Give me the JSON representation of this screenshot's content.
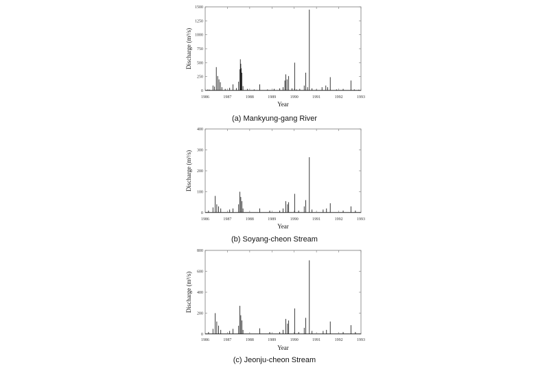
{
  "chart_data": [
    {
      "type": "line",
      "caption": "(a)  Mankyung-gang  River",
      "xlabel": "Year",
      "ylabel": "Discharge (m³/s)",
      "xlim": [
        1986,
        1993
      ],
      "ylim": [
        0,
        1500
      ],
      "xticks": [
        1986,
        1987,
        1988,
        1989,
        1990,
        1991,
        1992,
        1993
      ],
      "xtick_labels": [
        "1986",
        "1987",
        "1988",
        "1989",
        "1990",
        "1991",
        "1992",
        "1993"
      ],
      "yticks": [
        0,
        250,
        500,
        750,
        1000,
        1250,
        1500
      ],
      "ytick_labels": [
        "0",
        "250",
        "500",
        "750",
        "1000",
        "1250",
        "1500"
      ],
      "peaks": [
        [
          1986.12,
          20
        ],
        [
          1986.2,
          15
        ],
        [
          1986.35,
          90
        ],
        [
          1986.42,
          70
        ],
        [
          1986.5,
          420
        ],
        [
          1986.56,
          260
        ],
        [
          1986.62,
          200
        ],
        [
          1986.68,
          150
        ],
        [
          1986.75,
          60
        ],
        [
          1986.9,
          30
        ],
        [
          1987.1,
          50
        ],
        [
          1987.25,
          110
        ],
        [
          1987.4,
          45
        ],
        [
          1987.5,
          160
        ],
        [
          1987.56,
          380
        ],
        [
          1987.58,
          560
        ],
        [
          1987.6,
          480
        ],
        [
          1987.62,
          400
        ],
        [
          1987.65,
          320
        ],
        [
          1987.7,
          80
        ],
        [
          1987.9,
          30
        ],
        [
          1988.2,
          20
        ],
        [
          1988.45,
          110
        ],
        [
          1988.8,
          20
        ],
        [
          1989.1,
          30
        ],
        [
          1989.35,
          40
        ],
        [
          1989.5,
          60
        ],
        [
          1989.58,
          180
        ],
        [
          1989.62,
          290
        ],
        [
          1989.68,
          200
        ],
        [
          1989.75,
          260
        ],
        [
          1989.9,
          40
        ],
        [
          1990.02,
          500
        ],
        [
          1990.1,
          20
        ],
        [
          1990.25,
          30
        ],
        [
          1990.45,
          90
        ],
        [
          1990.52,
          320
        ],
        [
          1990.6,
          60
        ],
        [
          1990.68,
          1450
        ],
        [
          1990.8,
          40
        ],
        [
          1991.0,
          20
        ],
        [
          1991.25,
          60
        ],
        [
          1991.42,
          90
        ],
        [
          1991.5,
          60
        ],
        [
          1991.62,
          240
        ],
        [
          1991.9,
          20
        ],
        [
          1992.2,
          30
        ],
        [
          1992.55,
          180
        ],
        [
          1992.7,
          20
        ],
        [
          1992.9,
          15
        ]
      ]
    },
    {
      "type": "line",
      "caption": "(b)  Soyang-cheon  Stream",
      "xlabel": "Year",
      "ylabel": "Discharge (m³/s)",
      "xlim": [
        1986,
        1993
      ],
      "ylim": [
        0,
        400
      ],
      "xticks": [
        1986,
        1987,
        1988,
        1989,
        1990,
        1991,
        1992,
        1993
      ],
      "xtick_labels": [
        "1986",
        "1987",
        "1988",
        "1989",
        "1990",
        "1991",
        "1992",
        "1993"
      ],
      "yticks": [
        0,
        100,
        200,
        300,
        400
      ],
      "ytick_labels": [
        "0",
        "100",
        "200",
        "300",
        "400"
      ],
      "peaks": [
        [
          1986.15,
          10
        ],
        [
          1986.35,
          25
        ],
        [
          1986.45,
          80
        ],
        [
          1986.52,
          40
        ],
        [
          1986.6,
          30
        ],
        [
          1986.7,
          20
        ],
        [
          1987.1,
          15
        ],
        [
          1987.25,
          20
        ],
        [
          1987.5,
          40
        ],
        [
          1987.56,
          100
        ],
        [
          1987.6,
          75
        ],
        [
          1987.65,
          55
        ],
        [
          1987.7,
          20
        ],
        [
          1988.45,
          20
        ],
        [
          1988.9,
          10
        ],
        [
          1989.35,
          10
        ],
        [
          1989.5,
          20
        ],
        [
          1989.62,
          55
        ],
        [
          1989.7,
          40
        ],
        [
          1989.75,
          50
        ],
        [
          1990.02,
          90
        ],
        [
          1990.2,
          10
        ],
        [
          1990.45,
          30
        ],
        [
          1990.52,
          60
        ],
        [
          1990.68,
          265
        ],
        [
          1990.8,
          15
        ],
        [
          1991.3,
          15
        ],
        [
          1991.45,
          20
        ],
        [
          1991.62,
          45
        ],
        [
          1992.2,
          10
        ],
        [
          1992.55,
          30
        ],
        [
          1992.75,
          10
        ]
      ]
    },
    {
      "type": "line",
      "caption": "(c)  Jeonju-cheon  Stream",
      "xlabel": "Year",
      "ylabel": "Discharge (m³/s)",
      "xlim": [
        1986,
        1993
      ],
      "ylim": [
        0,
        800
      ],
      "xticks": [
        1986,
        1987,
        1988,
        1989,
        1990,
        1991,
        1992,
        1993
      ],
      "xtick_labels": [
        "1986",
        "1987",
        "1988",
        "1989",
        "1990",
        "1991",
        "1992",
        "1993"
      ],
      "yticks": [
        0,
        200,
        400,
        600,
        800
      ],
      "ytick_labels": [
        "0",
        "200",
        "400",
        "600",
        "800"
      ],
      "peaks": [
        [
          1986.15,
          20
        ],
        [
          1986.35,
          50
        ],
        [
          1986.45,
          200
        ],
        [
          1986.52,
          120
        ],
        [
          1986.6,
          80
        ],
        [
          1986.7,
          40
        ],
        [
          1987.1,
          30
        ],
        [
          1987.25,
          50
        ],
        [
          1987.5,
          80
        ],
        [
          1987.56,
          270
        ],
        [
          1987.6,
          180
        ],
        [
          1987.65,
          130
        ],
        [
          1987.7,
          40
        ],
        [
          1988.45,
          55
        ],
        [
          1988.9,
          20
        ],
        [
          1989.35,
          20
        ],
        [
          1989.5,
          40
        ],
        [
          1989.62,
          145
        ],
        [
          1989.7,
          100
        ],
        [
          1989.75,
          130
        ],
        [
          1990.02,
          245
        ],
        [
          1990.2,
          20
        ],
        [
          1990.45,
          60
        ],
        [
          1990.52,
          155
        ],
        [
          1990.68,
          705
        ],
        [
          1990.8,
          30
        ],
        [
          1991.3,
          30
        ],
        [
          1991.45,
          40
        ],
        [
          1991.62,
          120
        ],
        [
          1992.2,
          20
        ],
        [
          1992.55,
          85
        ],
        [
          1992.75,
          20
        ]
      ]
    }
  ]
}
